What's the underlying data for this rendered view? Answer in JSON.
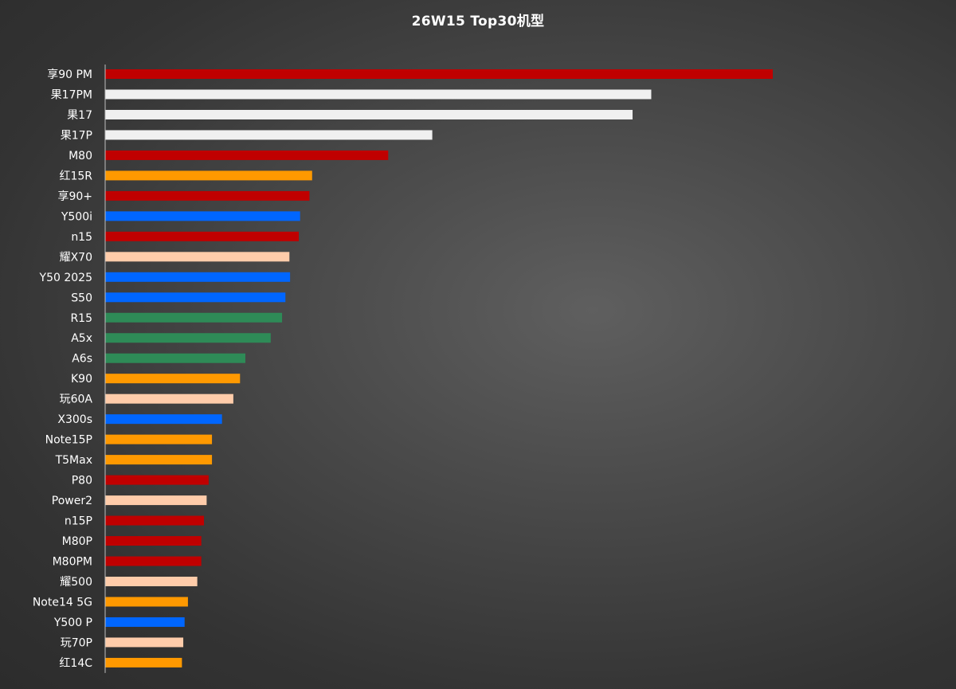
{
  "title": "26W15 Top30机型",
  "chart_data": {
    "type": "bar",
    "orientation": "horizontal",
    "title": "26W15 Top30机型",
    "xlabel": "",
    "ylabel": "",
    "xlim": [
      0,
      100
    ],
    "grid": false,
    "legend": "none",
    "value_labels": false,
    "categories": [
      "享90 PM",
      "果17PM",
      "果17",
      "果17P",
      "M80",
      "红15R",
      "享90+",
      "Y500i",
      "n15",
      "耀X70",
      "Y50 2025",
      "S50",
      "R15",
      "A5x",
      "A6s",
      "K90",
      "玩60A",
      "X300s",
      "Note15P",
      "T5Max",
      "P80",
      "Power2",
      "n15P",
      "M80P",
      "M80PM",
      "耀500",
      "Note14 5G",
      "Y500 P",
      "玩70P",
      "红14C"
    ],
    "values": [
      100,
      81.8,
      79,
      49,
      42.4,
      31,
      30.6,
      29.2,
      29,
      27.6,
      27.7,
      27,
      26.5,
      24.8,
      21,
      20.2,
      19.2,
      17.5,
      16,
      16,
      15.5,
      15.2,
      14.8,
      14.4,
      14.4,
      13.8,
      12.4,
      11.9,
      11.7,
      11.5
    ],
    "bar_colors": [
      "#c00000",
      "#f0f0f0",
      "#f0f0f0",
      "#f0f0f0",
      "#c00000",
      "#ff9900",
      "#c00000",
      "#0066ff",
      "#c00000",
      "#ffccaa",
      "#0066ff",
      "#0066ff",
      "#2e8b57",
      "#2e8b57",
      "#2e8b57",
      "#ff9900",
      "#ffccaa",
      "#0066ff",
      "#ff9900",
      "#ff9900",
      "#c00000",
      "#ffccaa",
      "#c00000",
      "#c00000",
      "#c00000",
      "#ffccaa",
      "#ff9900",
      "#0066ff",
      "#ffccaa",
      "#ff9900"
    ],
    "axis_color": "#bfbfbf"
  }
}
